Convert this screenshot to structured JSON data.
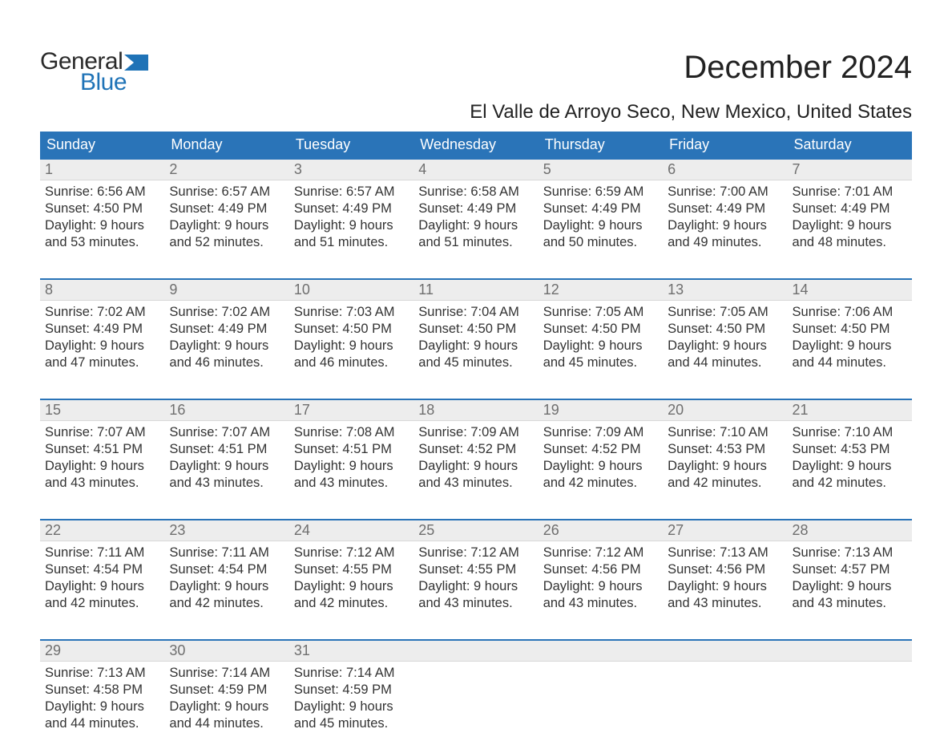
{
  "colors": {
    "header_bg": "#2a74b8",
    "header_text": "#ffffff",
    "daynum_bg": "#ededed",
    "daynum_text": "#6f6f6f",
    "body_text": "#333333",
    "week_border": "#2a74b8",
    "logo_blue": "#1f73b7",
    "background": "#ffffff"
  },
  "typography": {
    "title_fontsize": 40,
    "subtitle_fontsize": 24,
    "header_fontsize": 18,
    "daynum_fontsize": 18,
    "body_fontsize": 16.5,
    "logo_fontsize": 30
  },
  "logo": {
    "line1": "General",
    "line2": "Blue"
  },
  "title": "December 2024",
  "subtitle": "El Valle de Arroyo Seco, New Mexico, United States",
  "weekdays": [
    "Sunday",
    "Monday",
    "Tuesday",
    "Wednesday",
    "Thursday",
    "Friday",
    "Saturday"
  ],
  "weeks": [
    [
      {
        "num": "1",
        "sunrise": "Sunrise: 6:56 AM",
        "sunset": "Sunset: 4:50 PM",
        "d1": "Daylight: 9 hours",
        "d2": "and 53 minutes."
      },
      {
        "num": "2",
        "sunrise": "Sunrise: 6:57 AM",
        "sunset": "Sunset: 4:49 PM",
        "d1": "Daylight: 9 hours",
        "d2": "and 52 minutes."
      },
      {
        "num": "3",
        "sunrise": "Sunrise: 6:57 AM",
        "sunset": "Sunset: 4:49 PM",
        "d1": "Daylight: 9 hours",
        "d2": "and 51 minutes."
      },
      {
        "num": "4",
        "sunrise": "Sunrise: 6:58 AM",
        "sunset": "Sunset: 4:49 PM",
        "d1": "Daylight: 9 hours",
        "d2": "and 51 minutes."
      },
      {
        "num": "5",
        "sunrise": "Sunrise: 6:59 AM",
        "sunset": "Sunset: 4:49 PM",
        "d1": "Daylight: 9 hours",
        "d2": "and 50 minutes."
      },
      {
        "num": "6",
        "sunrise": "Sunrise: 7:00 AM",
        "sunset": "Sunset: 4:49 PM",
        "d1": "Daylight: 9 hours",
        "d2": "and 49 minutes."
      },
      {
        "num": "7",
        "sunrise": "Sunrise: 7:01 AM",
        "sunset": "Sunset: 4:49 PM",
        "d1": "Daylight: 9 hours",
        "d2": "and 48 minutes."
      }
    ],
    [
      {
        "num": "8",
        "sunrise": "Sunrise: 7:02 AM",
        "sunset": "Sunset: 4:49 PM",
        "d1": "Daylight: 9 hours",
        "d2": "and 47 minutes."
      },
      {
        "num": "9",
        "sunrise": "Sunrise: 7:02 AM",
        "sunset": "Sunset: 4:49 PM",
        "d1": "Daylight: 9 hours",
        "d2": "and 46 minutes."
      },
      {
        "num": "10",
        "sunrise": "Sunrise: 7:03 AM",
        "sunset": "Sunset: 4:50 PM",
        "d1": "Daylight: 9 hours",
        "d2": "and 46 minutes."
      },
      {
        "num": "11",
        "sunrise": "Sunrise: 7:04 AM",
        "sunset": "Sunset: 4:50 PM",
        "d1": "Daylight: 9 hours",
        "d2": "and 45 minutes."
      },
      {
        "num": "12",
        "sunrise": "Sunrise: 7:05 AM",
        "sunset": "Sunset: 4:50 PM",
        "d1": "Daylight: 9 hours",
        "d2": "and 45 minutes."
      },
      {
        "num": "13",
        "sunrise": "Sunrise: 7:05 AM",
        "sunset": "Sunset: 4:50 PM",
        "d1": "Daylight: 9 hours",
        "d2": "and 44 minutes."
      },
      {
        "num": "14",
        "sunrise": "Sunrise: 7:06 AM",
        "sunset": "Sunset: 4:50 PM",
        "d1": "Daylight: 9 hours",
        "d2": "and 44 minutes."
      }
    ],
    [
      {
        "num": "15",
        "sunrise": "Sunrise: 7:07 AM",
        "sunset": "Sunset: 4:51 PM",
        "d1": "Daylight: 9 hours",
        "d2": "and 43 minutes."
      },
      {
        "num": "16",
        "sunrise": "Sunrise: 7:07 AM",
        "sunset": "Sunset: 4:51 PM",
        "d1": "Daylight: 9 hours",
        "d2": "and 43 minutes."
      },
      {
        "num": "17",
        "sunrise": "Sunrise: 7:08 AM",
        "sunset": "Sunset: 4:51 PM",
        "d1": "Daylight: 9 hours",
        "d2": "and 43 minutes."
      },
      {
        "num": "18",
        "sunrise": "Sunrise: 7:09 AM",
        "sunset": "Sunset: 4:52 PM",
        "d1": "Daylight: 9 hours",
        "d2": "and 43 minutes."
      },
      {
        "num": "19",
        "sunrise": "Sunrise: 7:09 AM",
        "sunset": "Sunset: 4:52 PM",
        "d1": "Daylight: 9 hours",
        "d2": "and 42 minutes."
      },
      {
        "num": "20",
        "sunrise": "Sunrise: 7:10 AM",
        "sunset": "Sunset: 4:53 PM",
        "d1": "Daylight: 9 hours",
        "d2": "and 42 minutes."
      },
      {
        "num": "21",
        "sunrise": "Sunrise: 7:10 AM",
        "sunset": "Sunset: 4:53 PM",
        "d1": "Daylight: 9 hours",
        "d2": "and 42 minutes."
      }
    ],
    [
      {
        "num": "22",
        "sunrise": "Sunrise: 7:11 AM",
        "sunset": "Sunset: 4:54 PM",
        "d1": "Daylight: 9 hours",
        "d2": "and 42 minutes."
      },
      {
        "num": "23",
        "sunrise": "Sunrise: 7:11 AM",
        "sunset": "Sunset: 4:54 PM",
        "d1": "Daylight: 9 hours",
        "d2": "and 42 minutes."
      },
      {
        "num": "24",
        "sunrise": "Sunrise: 7:12 AM",
        "sunset": "Sunset: 4:55 PM",
        "d1": "Daylight: 9 hours",
        "d2": "and 42 minutes."
      },
      {
        "num": "25",
        "sunrise": "Sunrise: 7:12 AM",
        "sunset": "Sunset: 4:55 PM",
        "d1": "Daylight: 9 hours",
        "d2": "and 43 minutes."
      },
      {
        "num": "26",
        "sunrise": "Sunrise: 7:12 AM",
        "sunset": "Sunset: 4:56 PM",
        "d1": "Daylight: 9 hours",
        "d2": "and 43 minutes."
      },
      {
        "num": "27",
        "sunrise": "Sunrise: 7:13 AM",
        "sunset": "Sunset: 4:56 PM",
        "d1": "Daylight: 9 hours",
        "d2": "and 43 minutes."
      },
      {
        "num": "28",
        "sunrise": "Sunrise: 7:13 AM",
        "sunset": "Sunset: 4:57 PM",
        "d1": "Daylight: 9 hours",
        "d2": "and 43 minutes."
      }
    ],
    [
      {
        "num": "29",
        "sunrise": "Sunrise: 7:13 AM",
        "sunset": "Sunset: 4:58 PM",
        "d1": "Daylight: 9 hours",
        "d2": "and 44 minutes."
      },
      {
        "num": "30",
        "sunrise": "Sunrise: 7:14 AM",
        "sunset": "Sunset: 4:59 PM",
        "d1": "Daylight: 9 hours",
        "d2": "and 44 minutes."
      },
      {
        "num": "31",
        "sunrise": "Sunrise: 7:14 AM",
        "sunset": "Sunset: 4:59 PM",
        "d1": "Daylight: 9 hours",
        "d2": "and 45 minutes."
      },
      {
        "empty": true
      },
      {
        "empty": true
      },
      {
        "empty": true
      },
      {
        "empty": true
      }
    ]
  ]
}
